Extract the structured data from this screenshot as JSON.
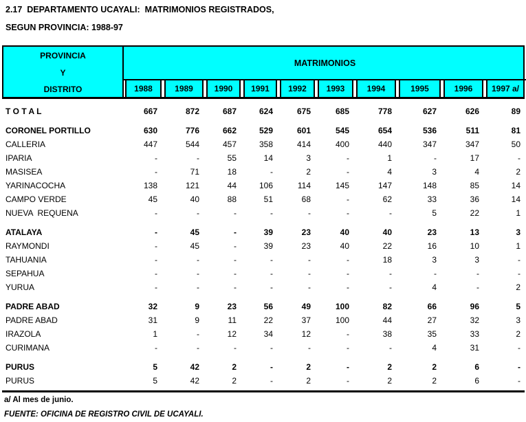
{
  "title": {
    "line1": "2.17  DEPARTAMENTO UCAYALI:  MATRIMONIOS REGISTRADOS,",
    "line2": "SEGUN PROVINCIA: 1988-97"
  },
  "colors": {
    "header_bg": "#00FFFF",
    "border": "#000000",
    "text": "#000000",
    "page_bg": "#FFFFFF"
  },
  "table": {
    "left_header_lines": [
      "PROVINCIA",
      "Y",
      "DISTRITO"
    ],
    "span_header": "MATRIMONIOS",
    "years": [
      "1988",
      "1989",
      "1990",
      "1991",
      "1992",
      "1993",
      "1994",
      "1995",
      "1996",
      "1997 a/"
    ],
    "rows": [
      {
        "label": "T O T A L",
        "bold": true,
        "gap": true,
        "values": [
          "667",
          "872",
          "687",
          "624",
          "675",
          "685",
          "778",
          "627",
          "626",
          "89"
        ]
      },
      {
        "label": "CORONEL PORTILLO",
        "bold": true,
        "gap": true,
        "values": [
          "630",
          "776",
          "662",
          "529",
          "601",
          "545",
          "654",
          "536",
          "511",
          "81"
        ]
      },
      {
        "label": "CALLERIA",
        "bold": false,
        "gap": false,
        "values": [
          "447",
          "544",
          "457",
          "358",
          "414",
          "400",
          "440",
          "347",
          "347",
          "50"
        ]
      },
      {
        "label": "IPARIA",
        "bold": false,
        "gap": false,
        "values": [
          "-",
          "-",
          "55",
          "14",
          "3",
          "-",
          "1",
          "-",
          "17",
          "-"
        ]
      },
      {
        "label": "MASISEA",
        "bold": false,
        "gap": false,
        "values": [
          "-",
          "71",
          "18",
          "-",
          "2",
          "-",
          "4",
          "3",
          "4",
          "2"
        ]
      },
      {
        "label": "YARINACOCHA",
        "bold": false,
        "gap": false,
        "values": [
          "138",
          "121",
          "44",
          "106",
          "114",
          "145",
          "147",
          "148",
          "85",
          "14"
        ]
      },
      {
        "label": "CAMPO VERDE",
        "bold": false,
        "gap": false,
        "values": [
          "45",
          "40",
          "88",
          "51",
          "68",
          "-",
          "62",
          "33",
          "36",
          "14"
        ]
      },
      {
        "label": "NUEVA  REQUENA",
        "bold": false,
        "gap": false,
        "values": [
          "-",
          "-",
          "-",
          "-",
          "-",
          "-",
          "-",
          "5",
          "22",
          "1"
        ]
      },
      {
        "label": "ATALAYA",
        "bold": true,
        "gap": true,
        "values": [
          "-",
          "45",
          "-",
          "39",
          "23",
          "40",
          "40",
          "23",
          "13",
          "3"
        ]
      },
      {
        "label": "RAYMONDI",
        "bold": false,
        "gap": false,
        "values": [
          "-",
          "45",
          "-",
          "39",
          "23",
          "40",
          "22",
          "16",
          "10",
          "1"
        ]
      },
      {
        "label": "TAHUANIA",
        "bold": false,
        "gap": false,
        "values": [
          "-",
          "-",
          "-",
          "-",
          "-",
          "-",
          "18",
          "3",
          "3",
          "-"
        ]
      },
      {
        "label": "SEPAHUA",
        "bold": false,
        "gap": false,
        "values": [
          "-",
          "-",
          "-",
          "-",
          "-",
          "-",
          "-",
          "-",
          "-",
          "-"
        ]
      },
      {
        "label": "YURUA",
        "bold": false,
        "gap": false,
        "values": [
          "-",
          "-",
          "-",
          "-",
          "-",
          "-",
          "-",
          "4",
          "-",
          "2"
        ]
      },
      {
        "label": "PADRE ABAD",
        "bold": true,
        "gap": true,
        "values": [
          "32",
          "9",
          "23",
          "56",
          "49",
          "100",
          "82",
          "66",
          "96",
          "5"
        ]
      },
      {
        "label": "PADRE ABAD",
        "bold": false,
        "gap": false,
        "values": [
          "31",
          "9",
          "11",
          "22",
          "37",
          "100",
          "44",
          "27",
          "32",
          "3"
        ]
      },
      {
        "label": "IRAZOLA",
        "bold": false,
        "gap": false,
        "values": [
          "1",
          "-",
          "12",
          "34",
          "12",
          "-",
          "38",
          "35",
          "33",
          "2"
        ]
      },
      {
        "label": "CURIMANA",
        "bold": false,
        "gap": false,
        "values": [
          "-",
          "-",
          "-",
          "-",
          "-",
          "-",
          "-",
          "4",
          "31",
          "-"
        ]
      },
      {
        "label": "PURUS",
        "bold": true,
        "gap": true,
        "values": [
          "5",
          "42",
          "2",
          "-",
          "2",
          "-",
          "2",
          "2",
          "6",
          "-"
        ]
      },
      {
        "label": "PURUS",
        "bold": false,
        "gap": false,
        "values": [
          "5",
          "42",
          "2",
          "-",
          "2",
          "-",
          "2",
          "2",
          "6",
          "-"
        ]
      }
    ]
  },
  "footnote": "a/ Al mes de junio.",
  "source": "FUENTE: OFICINA DE REGISTRO CIVIL DE UCAYALI."
}
